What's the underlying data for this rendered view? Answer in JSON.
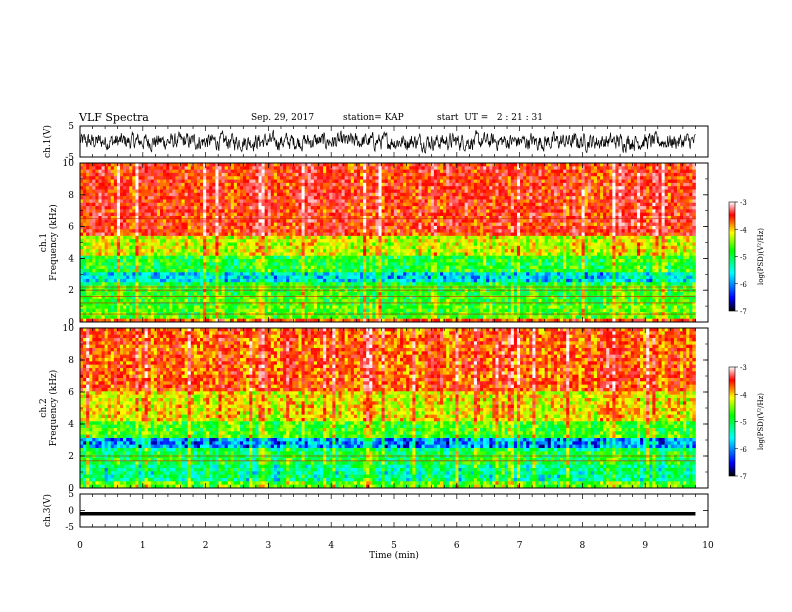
{
  "header": {
    "title": "VLF Spectra",
    "date": "Sep. 29, 2017",
    "station": "station= KAP",
    "start_ut": "start  UT =   2 : 21 : 31"
  },
  "chart_data": [
    {
      "type": "line",
      "panel": "ch1-waveform",
      "ylabel": "ch.1(V)",
      "ylim": [
        -5,
        5
      ],
      "yticks": [
        "5",
        "-5"
      ],
      "xlim": [
        0,
        10
      ],
      "signal": "noisy waveform, amplitude about ±3 V, x from 0 to 9.8 min"
    },
    {
      "type": "heatmap",
      "panel": "ch1-spectrogram",
      "ylabel": "ch.1\nFrequency  (kHz)",
      "ylim": [
        0,
        10
      ],
      "yticks": [
        "0",
        "2",
        "4",
        "6",
        "8",
        "10"
      ],
      "xlim": [
        0,
        10
      ],
      "data_x_end": 9.8,
      "colorbar": {
        "label": "log(PSD)(V²/Hz)",
        "range": [
          -7,
          -3
        ],
        "ticks": [
          "-3",
          "-4",
          "-5",
          "-6",
          "-7"
        ]
      },
      "bands": [
        {
          "from": 0.0,
          "to": 0.3,
          "mean_log_psd": -4.0
        },
        {
          "from": 0.3,
          "to": 1.0,
          "mean_log_psd": -5.0
        },
        {
          "from": 1.0,
          "to": 2.3,
          "mean_log_psd": -5.1
        },
        {
          "from": 2.3,
          "to": 2.6,
          "mean_log_psd": -5.3
        },
        {
          "from": 2.6,
          "to": 3.2,
          "mean_log_psd": -5.9
        },
        {
          "from": 3.2,
          "to": 4.2,
          "mean_log_psd": -5.2
        },
        {
          "from": 4.2,
          "to": 5.5,
          "mean_log_psd": -4.6
        },
        {
          "from": 5.5,
          "to": 10.0,
          "mean_log_psd": -3.8
        }
      ],
      "lines_khz": [
        0.5,
        1.2,
        1.6,
        2.0,
        2.2,
        6.5
      ]
    },
    {
      "type": "heatmap",
      "panel": "ch2-spectrogram",
      "ylabel": "ch.2\nFrequency  (kHz)",
      "ylim": [
        0,
        10
      ],
      "yticks": [
        "0",
        "2",
        "4",
        "6",
        "8",
        "10"
      ],
      "xlim": [
        0,
        10
      ],
      "data_x_end": 9.8,
      "colorbar": {
        "label": "log(PSD)(V²/Hz)",
        "range": [
          -7,
          -3
        ],
        "ticks": [
          "-3",
          "-4",
          "-5",
          "-6",
          "-7"
        ]
      },
      "bands": [
        {
          "from": 0.0,
          "to": 0.4,
          "mean_log_psd": -5.0
        },
        {
          "from": 0.4,
          "to": 1.4,
          "mean_log_psd": -5.6
        },
        {
          "from": 1.4,
          "to": 2.2,
          "mean_log_psd": -5.3
        },
        {
          "from": 2.2,
          "to": 2.6,
          "mean_log_psd": -5.5
        },
        {
          "from": 2.6,
          "to": 3.2,
          "mean_log_psd": -6.2
        },
        {
          "from": 3.2,
          "to": 4.2,
          "mean_log_psd": -5.1
        },
        {
          "from": 4.2,
          "to": 6.0,
          "mean_log_psd": -4.5
        },
        {
          "from": 6.0,
          "to": 10.0,
          "mean_log_psd": -4.0
        }
      ],
      "lines_khz": [
        1.7,
        2.0
      ]
    },
    {
      "type": "line",
      "panel": "ch3-waveform",
      "ylabel": "ch.3(V)",
      "ylim": [
        -5,
        5
      ],
      "yticks": [
        "5",
        "0",
        "-5"
      ],
      "xlim": [
        0,
        10
      ],
      "constant_value": -1.0,
      "signal": "flat thick line near -1 V from 0 to 9.8 min"
    }
  ],
  "x_axis": {
    "label": "Time  (min)",
    "ticks": [
      "0",
      "1",
      "2",
      "3",
      "4",
      "5",
      "6",
      "7",
      "8",
      "9",
      "10"
    ]
  },
  "colors": {
    "colormap": [
      "#ffffff",
      "#ff0000",
      "#ffff00",
      "#00ff00",
      "#00ffff",
      "#0000ff",
      "#000000"
    ]
  }
}
